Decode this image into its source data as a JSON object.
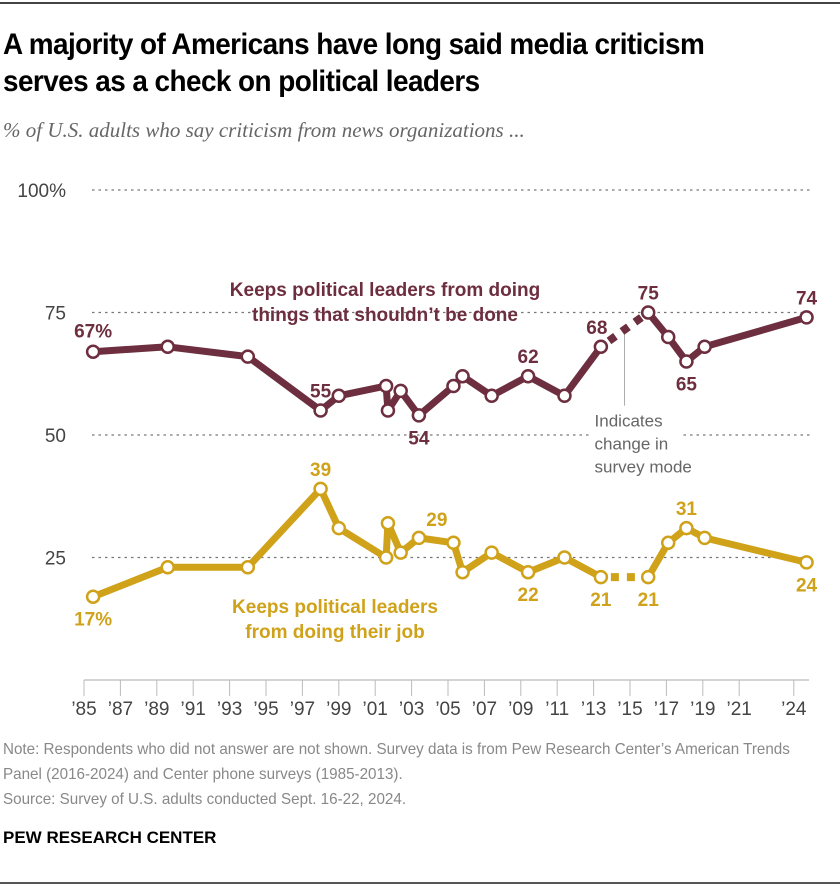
{
  "header": {
    "title": "A majority of Americans have long said media criticism serves as a check on political leaders",
    "subtitle": "% of U.S. adults who say criticism from news organizations ..."
  },
  "footer": {
    "note": "Note: Respondents who did not answer are not shown. Survey data is from Pew Research Center’s American Trends Panel (2016-2024) and Center phone surveys (1985-2013).",
    "source": "Source: Survey of U.S. adults conducted Sept. 16-22, 2024.",
    "brand": "PEW RESEARCH CENTER"
  },
  "colors": {
    "maroon": "#6d2e3f",
    "gold": "#cfa21a",
    "grid": "#777777",
    "axis": "#bbbbbb",
    "annotation": "#888888",
    "tick_text": "#444444"
  },
  "chart_data": {
    "type": "line",
    "title": "A majority of Americans have long said media criticism serves as a check on political leaders",
    "subtitle": "% of U.S. adults who say criticism from news organizations ...",
    "xlabel": "",
    "ylabel": "",
    "ylim": [
      0,
      100
    ],
    "xlim": [
      1985,
      2025
    ],
    "grid": true,
    "y_ticks": [
      {
        "value": 100,
        "label": "100%"
      },
      {
        "value": 75,
        "label": "75"
      },
      {
        "value": 50,
        "label": "50"
      },
      {
        "value": 25,
        "label": "25"
      }
    ],
    "x_ticks": [
      {
        "value": 1985,
        "label": "’85"
      },
      {
        "value": 1987,
        "label": "’87"
      },
      {
        "value": 1989,
        "label": "’89"
      },
      {
        "value": 1991,
        "label": "’91"
      },
      {
        "value": 1993,
        "label": "’93"
      },
      {
        "value": 1995,
        "label": "’95"
      },
      {
        "value": 1997,
        "label": "’97"
      },
      {
        "value": 1999,
        "label": "’99"
      },
      {
        "value": 2001,
        "label": "’01"
      },
      {
        "value": 2003,
        "label": "’03"
      },
      {
        "value": 2005,
        "label": "’05"
      },
      {
        "value": 2007,
        "label": "’07"
      },
      {
        "value": 2009,
        "label": "’09"
      },
      {
        "value": 2011,
        "label": "’11"
      },
      {
        "value": 2013,
        "label": "’13"
      },
      {
        "value": 2015,
        "label": "’15"
      },
      {
        "value": 2017,
        "label": "’17"
      },
      {
        "value": 2019,
        "label": "’19"
      },
      {
        "value": 2021,
        "label": "’21"
      },
      {
        "value": 2024,
        "label": "’24"
      }
    ],
    "mode_change_after_index": 14,
    "annotation": {
      "lines": [
        "Indicates",
        "change in",
        "survey mode"
      ]
    },
    "series": [
      {
        "name": "Keeps political leaders from doing things that shouldn’t be done",
        "label_lines": [
          "Keeps political leaders from doing",
          "things that shouldn’t be done"
        ],
        "color_key": "maroon",
        "x": [
          1985.5,
          1989.6,
          1994.0,
          1998.0,
          1999.0,
          2001.6,
          2001.7,
          2002.4,
          2003.4,
          2005.3,
          2005.8,
          2007.4,
          2009.4,
          2011.4,
          2013.4,
          2016.0,
          2017.1,
          2018.1,
          2019.1,
          2024.7
        ],
        "values": [
          67,
          68,
          66,
          55,
          58,
          60,
          55,
          59,
          54,
          60,
          62,
          58,
          62,
          58,
          68,
          75,
          70,
          65,
          68,
          74
        ],
        "data_labels": [
          {
            "index": 0,
            "text": "67%",
            "pos": "above"
          },
          {
            "index": 3,
            "text": "55",
            "pos": "above"
          },
          {
            "index": 8,
            "text": "54",
            "pos": "below"
          },
          {
            "index": 12,
            "text": "62",
            "pos": "above"
          },
          {
            "index": 14,
            "text": "68",
            "pos": "above"
          },
          {
            "index": 15,
            "text": "75",
            "pos": "above"
          },
          {
            "index": 17,
            "text": "65",
            "pos": "below"
          },
          {
            "index": 19,
            "text": "74",
            "pos": "above"
          }
        ]
      },
      {
        "name": "Keeps political leaders from doing their job",
        "label_lines": [
          "Keeps political leaders",
          "from doing their job"
        ],
        "color_key": "gold",
        "x": [
          1985.5,
          1989.6,
          1994.0,
          1998.0,
          1999.0,
          2001.6,
          2001.7,
          2002.4,
          2003.4,
          2005.3,
          2005.8,
          2007.4,
          2009.4,
          2011.4,
          2013.4,
          2016.0,
          2017.1,
          2018.1,
          2019.1,
          2024.7
        ],
        "values": [
          17,
          23,
          23,
          39,
          31,
          25,
          32,
          26,
          29,
          28,
          22,
          26,
          22,
          25,
          21,
          21,
          28,
          31,
          29,
          24
        ],
        "data_labels": [
          {
            "index": 0,
            "text": "17%",
            "pos": "below"
          },
          {
            "index": 3,
            "text": "39",
            "pos": "above"
          },
          {
            "index": 8,
            "text": "29",
            "pos": "above"
          },
          {
            "index": 12,
            "text": "22",
            "pos": "below"
          },
          {
            "index": 14,
            "text": "21",
            "pos": "below"
          },
          {
            "index": 15,
            "text": "21",
            "pos": "below"
          },
          {
            "index": 17,
            "text": "31",
            "pos": "above"
          },
          {
            "index": 19,
            "text": "24",
            "pos": "below"
          }
        ]
      }
    ]
  }
}
